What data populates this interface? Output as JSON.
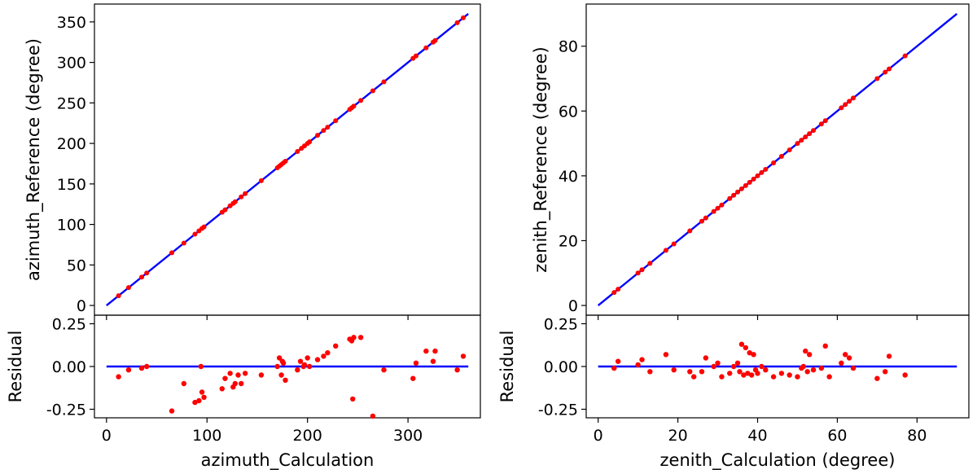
{
  "chart_data": [
    {
      "type": "scatter",
      "panel": "main",
      "xlim": [
        -12,
        372
      ],
      "ylim": [
        -12,
        372
      ],
      "xticks": [
        0,
        100,
        200,
        300
      ],
      "yticks": [
        0,
        50,
        100,
        150,
        200,
        250,
        300,
        350
      ],
      "xtick_labels": [
        "0",
        "100",
        "200",
        "300"
      ],
      "ytick_labels": [
        "0",
        "50",
        "100",
        "150",
        "200",
        "250",
        "300",
        "350"
      ],
      "xlabel": "",
      "ylabel": "azimuth_Reference (degree)",
      "line": {
        "x": [
          0,
          360
        ],
        "y": [
          0,
          360
        ],
        "color": "#0000ff"
      },
      "point_color": "#ff0000",
      "x": [
        12,
        22,
        35,
        40,
        65,
        77,
        88,
        92,
        95,
        97,
        115,
        118,
        123,
        126,
        128,
        134,
        138,
        154,
        170,
        172,
        174,
        176,
        178,
        190,
        194,
        197,
        200,
        202,
        210,
        216,
        220,
        228,
        242,
        244,
        246,
        253,
        265,
        276,
        305,
        308,
        318,
        325,
        327,
        349,
        355
      ],
      "y": [
        12,
        22,
        35,
        40,
        65,
        77,
        88,
        92,
        95,
        97,
        115,
        118,
        123,
        126,
        128,
        134,
        138,
        154,
        170,
        172,
        174,
        176,
        178,
        190,
        194,
        197,
        200,
        202,
        210,
        216,
        220,
        228,
        242,
        244,
        246,
        253,
        265,
        276,
        305,
        308,
        318,
        325,
        327,
        349,
        355
      ]
    },
    {
      "type": "scatter",
      "panel": "residual",
      "xlim": [
        -12,
        372
      ],
      "ylim": [
        -0.3,
        0.3
      ],
      "xticks": [
        0,
        100,
        200,
        300
      ],
      "yticks": [
        0.25,
        0.0,
        -0.25
      ],
      "xtick_labels": [
        "0",
        "100",
        "200",
        "300"
      ],
      "ytick_labels": [
        "0.25",
        "0.00",
        "-0.25"
      ],
      "xlabel": "azimuth_Calculation",
      "ylabel": "Residual",
      "line": {
        "x": [
          0,
          360
        ],
        "y": [
          0,
          0
        ],
        "color": "#0000ff"
      },
      "point_color": "#ff0000",
      "x": [
        12,
        22,
        35,
        40,
        65,
        77,
        88,
        92,
        94,
        95,
        97,
        115,
        118,
        123,
        126,
        128,
        131,
        134,
        138,
        154,
        170,
        172,
        174,
        175,
        176,
        178,
        190,
        193,
        196,
        197,
        200,
        202,
        210,
        216,
        220,
        228,
        242,
        244,
        245,
        246,
        253,
        265,
        276,
        305,
        308,
        318,
        325,
        327,
        349,
        355
      ],
      "y": [
        -0.06,
        -0.02,
        -0.01,
        0.0,
        -0.26,
        -0.1,
        -0.21,
        -0.2,
        0.0,
        -0.15,
        -0.18,
        -0.13,
        -0.07,
        -0.04,
        -0.12,
        -0.1,
        -0.05,
        -0.1,
        -0.04,
        -0.05,
        0.0,
        0.05,
        -0.05,
        0.03,
        0.02,
        -0.08,
        -0.02,
        0.03,
        0.0,
        0.01,
        0.05,
        0.0,
        0.04,
        0.06,
        0.08,
        0.12,
        0.16,
        0.15,
        -0.19,
        0.17,
        0.17,
        -0.29,
        -0.02,
        -0.07,
        0.02,
        0.09,
        0.03,
        0.09,
        -0.02,
        0.06
      ]
    },
    {
      "type": "scatter",
      "panel": "main",
      "xlim": [
        -3,
        93
      ],
      "ylim": [
        -3,
        93
      ],
      "xticks": [
        0,
        20,
        40,
        60,
        80
      ],
      "yticks": [
        0,
        20,
        40,
        60,
        80
      ],
      "xtick_labels": [
        "0",
        "20",
        "40",
        "60",
        "80"
      ],
      "ytick_labels": [
        "0",
        "20",
        "40",
        "60",
        "80"
      ],
      "xlabel": "",
      "ylabel": "zenith_Reference (degree)",
      "line": {
        "x": [
          0,
          90
        ],
        "y": [
          0,
          90
        ],
        "color": "#0000ff"
      },
      "point_color": "#ff0000",
      "x": [
        4,
        5,
        10,
        11,
        13,
        17,
        19,
        23,
        26,
        27,
        29,
        30,
        31,
        33,
        34,
        35,
        36,
        37,
        38,
        39,
        40,
        41,
        42,
        44,
        46,
        48,
        50,
        51,
        52,
        53,
        54,
        56,
        57,
        61,
        62,
        63,
        64,
        70,
        72,
        73,
        77
      ],
      "y": [
        4,
        5,
        10,
        11,
        13,
        17,
        19,
        23,
        26,
        27,
        29,
        30,
        31,
        33,
        34,
        35,
        36,
        37,
        38,
        39,
        40,
        41,
        42,
        44,
        46,
        48,
        50,
        51,
        52,
        53,
        54,
        56,
        57,
        61,
        62,
        63,
        64,
        70,
        72,
        73,
        77
      ]
    },
    {
      "type": "scatter",
      "panel": "residual",
      "xlim": [
        -3,
        93
      ],
      "ylim": [
        -0.3,
        0.3
      ],
      "xticks": [
        0,
        20,
        40,
        60,
        80
      ],
      "yticks": [
        0.25,
        0.0,
        -0.25
      ],
      "xtick_labels": [
        "0",
        "20",
        "40",
        "60",
        "80"
      ],
      "ytick_labels": [
        "0.25",
        "0.00",
        "-0.25"
      ],
      "xlabel": "zenith_Calculation (degree)",
      "ylabel": "Residual",
      "line": {
        "x": [
          0,
          90
        ],
        "y": [
          0,
          0
        ],
        "color": "#0000ff"
      },
      "point_color": "#ff0000",
      "x": [
        4,
        5,
        10,
        11,
        13,
        17,
        19,
        23,
        24,
        26,
        27,
        29,
        30,
        31,
        33,
        34,
        35,
        35.5,
        36,
        36.5,
        37,
        37.5,
        38,
        38.5,
        39,
        39.5,
        40,
        41,
        42,
        44,
        46,
        48,
        50,
        51,
        51.5,
        52,
        52.5,
        53,
        54,
        56,
        57,
        58,
        61,
        62,
        63,
        64,
        70,
        72,
        73,
        77
      ],
      "y": [
        -0.01,
        0.03,
        0.01,
        0.04,
        -0.03,
        0.07,
        -0.02,
        -0.03,
        -0.06,
        -0.03,
        0.05,
        0.0,
        0.02,
        -0.06,
        -0.04,
        0.0,
        0.02,
        -0.03,
        0.13,
        -0.05,
        0.11,
        -0.04,
        0.08,
        -0.05,
        0.07,
        -0.02,
        -0.04,
        0.0,
        -0.02,
        -0.06,
        -0.04,
        -0.05,
        -0.06,
        -0.01,
        0.0,
        0.09,
        -0.03,
        0.07,
        -0.02,
        -0.01,
        0.12,
        -0.06,
        0.02,
        0.07,
        0.05,
        -0.01,
        -0.07,
        -0.03,
        0.06,
        -0.05
      ]
    }
  ]
}
